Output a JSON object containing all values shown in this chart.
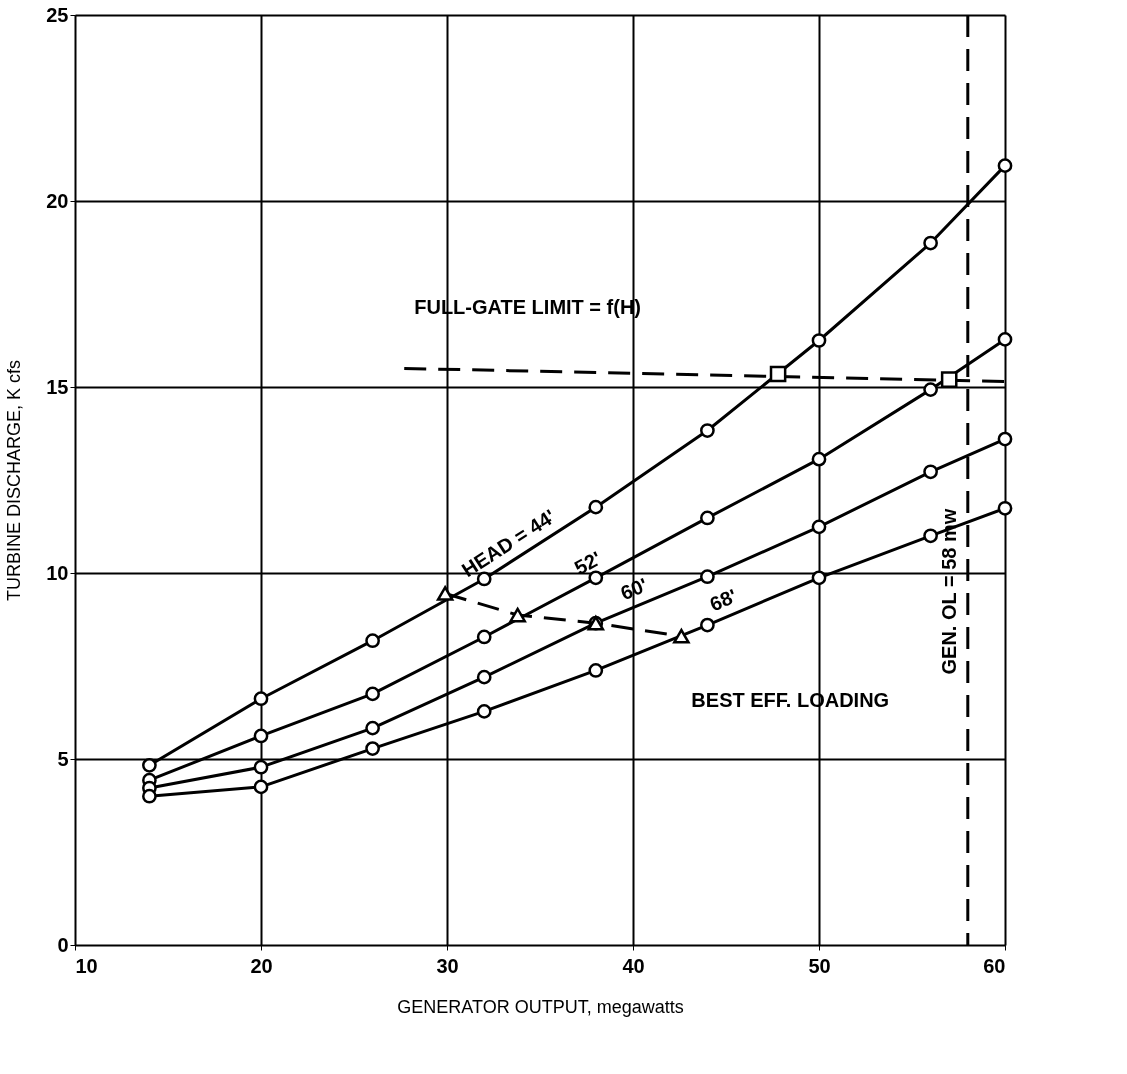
{
  "chart_data": {
    "type": "line",
    "xlabel": "GENERATOR OUTPUT, megawatts",
    "ylabel": "TURBINE DISCHARGE, K cfs",
    "x": [
      14,
      20,
      26,
      32,
      38,
      44,
      50,
      56,
      60
    ],
    "series": [
      {
        "name": "HEAD = 44'",
        "color": "#000000",
        "marker": "circle",
        "line_style": "solid",
        "values": [
          4.83,
          6.62,
          8.18,
          9.84,
          11.77,
          13.83,
          16.25,
          18.87,
          20.95
        ]
      },
      {
        "name": "52'",
        "color": "#000000",
        "marker": "circle",
        "line_style": "solid",
        "values": [
          4.43,
          5.62,
          6.75,
          8.28,
          9.87,
          11.48,
          13.06,
          14.93,
          16.28
        ]
      },
      {
        "name": "60'",
        "color": "#000000",
        "marker": "circle",
        "line_style": "solid",
        "values": [
          4.22,
          4.78,
          5.83,
          7.2,
          8.65,
          9.9,
          11.24,
          12.72,
          13.6
        ]
      },
      {
        "name": "68'",
        "color": "#000000",
        "marker": "circle",
        "line_style": "solid",
        "values": [
          4.0,
          4.25,
          5.28,
          6.28,
          7.38,
          8.6,
          9.87,
          11.0,
          11.74
        ]
      },
      {
        "name": "FULL-GATE LIMIT = f(H)",
        "color": "#000000",
        "marker": "none",
        "line_style": "dashed",
        "x": [
          27.7,
          60
        ],
        "values": [
          15.5,
          15.15
        ]
      },
      {
        "type": "scatter",
        "color": "#000000",
        "marker": "square",
        "x": [
          47.8,
          57
        ],
        "values": [
          15.35,
          15.2
        ]
      },
      {
        "name": "BEST EFF. LOADING",
        "color": "#000000",
        "marker": "triangle",
        "line_style": "dashed",
        "x": [
          29.9,
          33.8,
          38,
          42.6
        ],
        "values": [
          9.45,
          8.87,
          8.65,
          8.3
        ]
      }
    ],
    "ref_lines": [
      {
        "axis": "x",
        "value": 58,
        "label": "GEN. OL = 58 mw",
        "line_style": "dashed",
        "color": "#000000"
      }
    ],
    "xlim": [
      10,
      60
    ],
    "xticks": [
      10,
      20,
      30,
      40,
      50,
      60
    ],
    "ylim": [
      0,
      25
    ],
    "yticks": [
      0,
      5,
      10,
      15,
      20,
      25
    ],
    "grid": true,
    "legend": false
  }
}
